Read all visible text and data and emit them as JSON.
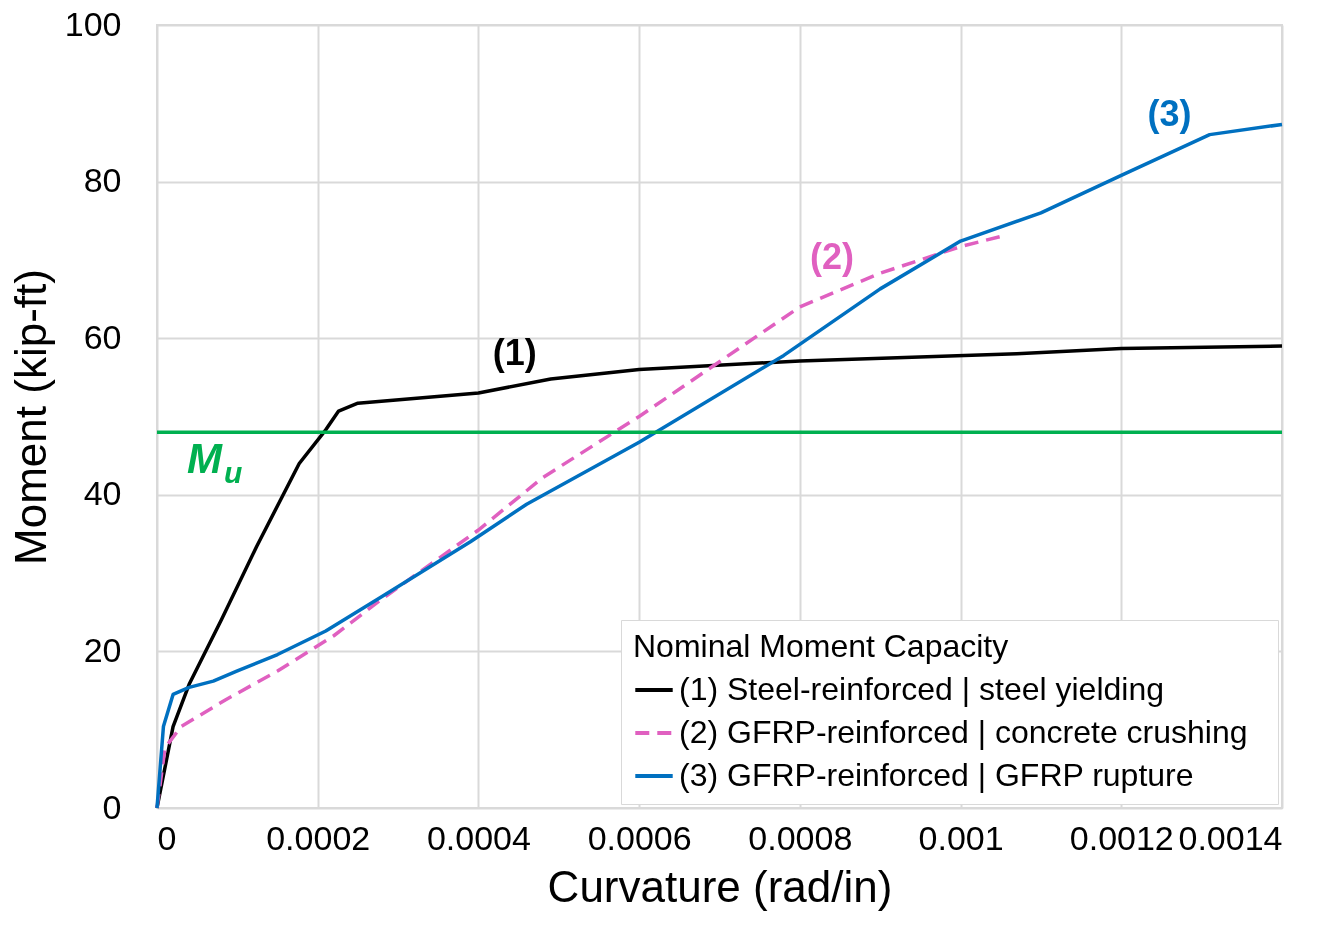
{
  "chart_data": {
    "type": "line",
    "xlabel": "Curvature (rad/in)",
    "ylabel": "Moment (kip-ft)",
    "legend_title": "Nominal Moment Capacity",
    "legend": "bottom right",
    "grid": true,
    "marker": "none",
    "xlim": [
      0,
      0.0014
    ],
    "xticks": [
      0,
      0.0002,
      0.0004,
      0.0006,
      0.0008,
      0.001,
      0.0012,
      0.0014
    ],
    "ylim": [
      0,
      100
    ],
    "yticks": [
      0,
      20,
      40,
      60,
      80,
      100
    ],
    "series": [
      {
        "name": "(1)   Steel-reinforced | steel yielding",
        "color": "#000000",
        "line_style": "solid",
        "x": [
          0,
          2e-05,
          4e-05,
          8e-05,
          0.000124,
          0.000177,
          0.00021,
          0.000226,
          0.00025,
          0.0004,
          0.00049,
          0.0006,
          0.0008,
          0.00107,
          0.0012,
          0.0014
        ],
        "values": [
          0,
          10.4,
          15.8,
          24,
          33.4,
          44,
          48.3,
          50.7,
          51.7,
          53,
          54.8,
          56,
          57.1,
          58,
          58.7,
          59
        ]
      },
      {
        "name": "(2)   GFRP-reinforced | concrete crushing",
        "color": "#e060c0",
        "line_style": "dashed",
        "x": [
          0,
          1e-05,
          3e-05,
          8.5e-05,
          0.00015,
          0.00022,
          0.00028,
          0.0004,
          0.00048,
          0.0006,
          0.0007,
          0.0008,
          0.0009,
          0.001,
          0.00105
        ],
        "values": [
          0,
          7.7,
          10.4,
          13.8,
          17.5,
          22,
          26.7,
          35.5,
          42.2,
          50,
          57,
          64,
          68.3,
          71.7,
          73
        ]
      },
      {
        "name": "(3)   GFRP-reinforced | GFRP rupture",
        "color": "#0070c0",
        "line_style": "solid",
        "x": [
          0,
          8e-06,
          2e-05,
          4e-05,
          7e-05,
          0.0001,
          0.00015,
          0.00021,
          0.00028,
          0.00039,
          0.00046,
          0.0006,
          0.00078,
          0.0009,
          0.001,
          0.0011,
          0.0012,
          0.00131,
          0.0014
        ],
        "values": [
          0,
          10.4,
          14.5,
          15.4,
          16.2,
          17.5,
          19.6,
          22.6,
          27,
          34,
          38.8,
          46.7,
          57.8,
          66.3,
          72.4,
          76,
          80.8,
          86,
          87.3
        ]
      }
    ],
    "ref_lines": [
      {
        "axis": "y",
        "value": 48,
        "label": "M$_{u}$",
        "color": "#00b050"
      }
    ],
    "annotations": [
      "(1)",
      "(2)",
      "(3)"
    ]
  }
}
